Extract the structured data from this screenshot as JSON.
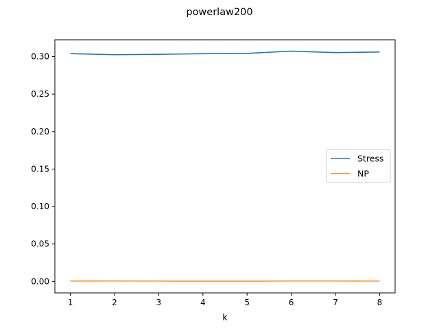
{
  "chart_data": {
    "type": "line",
    "title": "powerlaw200",
    "xlabel": "k",
    "ylabel": "",
    "x": [
      1,
      2,
      3,
      4,
      5,
      6,
      7,
      8
    ],
    "xlim": [
      0.65,
      8.35
    ],
    "ylim": [
      -0.0153,
      0.3225
    ],
    "x_ticks": [
      "1",
      "2",
      "3",
      "4",
      "5",
      "6",
      "7",
      "8"
    ],
    "y_ticks": [
      "0.00",
      "0.05",
      "0.10",
      "0.15",
      "0.20",
      "0.25",
      "0.30"
    ],
    "y_tick_values": [
      0,
      0.05,
      0.1,
      0.15,
      0.2,
      0.25,
      0.3
    ],
    "grid": false,
    "legend_position": "center-right",
    "series": [
      {
        "name": "Stress",
        "color": "#1f77b4",
        "values": [
          0.304,
          0.3026,
          0.3031,
          0.3039,
          0.3044,
          0.3073,
          0.3054,
          0.3062
        ]
      },
      {
        "name": "NP",
        "color": "#ff7f0e",
        "values": [
          0.0005,
          0.0006,
          0.0005,
          0.0004,
          0.0004,
          0.0006,
          0.0006,
          0.0005
        ]
      }
    ]
  }
}
